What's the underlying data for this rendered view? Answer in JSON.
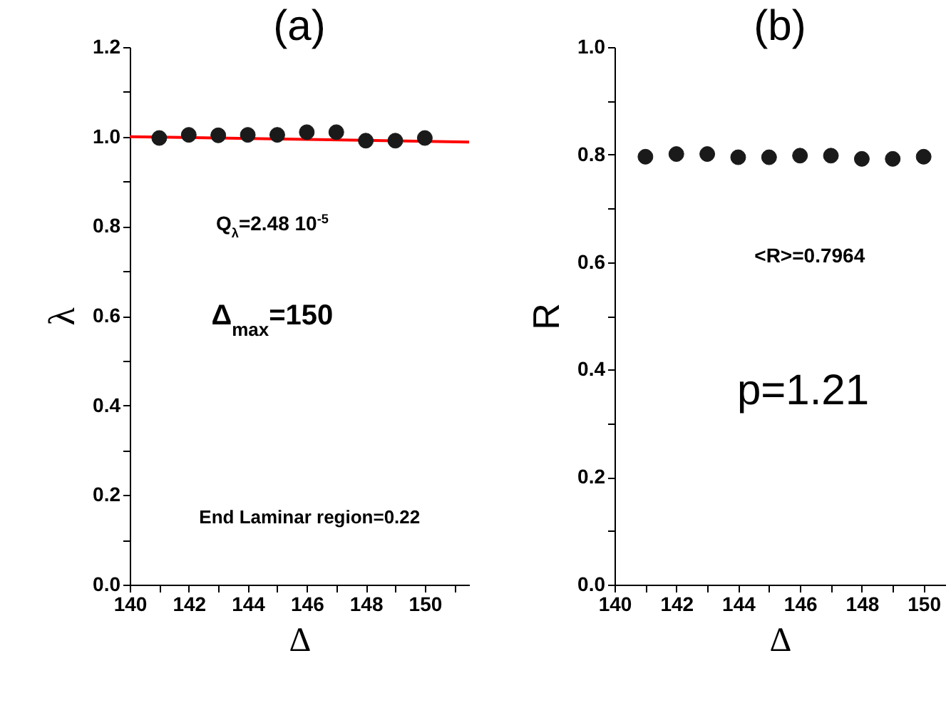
{
  "chart_data": [
    {
      "type": "scatter",
      "title": "(a)",
      "xlabel": "Δ",
      "ylabel": "λ",
      "grid": false,
      "x": [
        141,
        142,
        143,
        144,
        145,
        146,
        147,
        148,
        149,
        150
      ],
      "series": [
        {
          "color": "#1a1a1a",
          "marker": "circle",
          "values": [
            0.997,
            1.004,
            1.003,
            1.004,
            1.004,
            1.01,
            1.01,
            0.991,
            0.991,
            0.997
          ]
        },
        {
          "type": "line",
          "color": "#ff0000",
          "marker": "none",
          "x": [
            140,
            151.5
          ],
          "values": [
            1.0,
            0.988
          ]
        }
      ],
      "xlim": [
        140,
        151.5
      ],
      "xticks": [
        140,
        {
          "value": 141,
          "label": null
        },
        142,
        {
          "value": 143,
          "label": null
        },
        144,
        {
          "value": 145,
          "label": null
        },
        146,
        {
          "value": 147,
          "label": null
        },
        148,
        {
          "value": 149,
          "label": null
        },
        150,
        {
          "value": 151,
          "label": null
        }
      ],
      "ylim": [
        0,
        1.2
      ],
      "yticks": [
        {
          "value": 0,
          "label": "0.0"
        },
        {
          "value": 0.1,
          "label": null
        },
        {
          "value": 0.2,
          "label": "0.2"
        },
        {
          "value": 0.3,
          "label": null
        },
        {
          "value": 0.4,
          "label": "0.4"
        },
        {
          "value": 0.5,
          "label": null
        },
        {
          "value": 0.6,
          "label": "0.6"
        },
        {
          "value": 0.7,
          "label": null
        },
        {
          "value": 0.8,
          "label": "0.8"
        },
        {
          "value": 0.9,
          "label": null
        },
        {
          "value": 1,
          "label": "1.0"
        },
        {
          "value": 1.1,
          "label": null
        },
        {
          "value": 1.2,
          "label": "1.2"
        }
      ],
      "annotations": [
        "Q$_{λ}$=2.48 10$^{-5}$",
        "Δ$_{max}$=150",
        "End Laminar region=0.22"
      ]
    },
    {
      "type": "scatter",
      "title": "(b)",
      "xlabel": "Δ",
      "ylabel": "R",
      "marker": "circle",
      "grid": false,
      "x": [
        141,
        142,
        143,
        144,
        145,
        146,
        147,
        148,
        149,
        150
      ],
      "series": [
        {
          "color": "#1a1a1a",
          "values": [
            0.796,
            0.801,
            0.801,
            0.795,
            0.795,
            0.798,
            0.798,
            0.792,
            0.792,
            0.796
          ]
        }
      ],
      "xlim": [
        140,
        150.7
      ],
      "xticks": [
        140,
        {
          "value": 141,
          "label": null
        },
        142,
        {
          "value": 143,
          "label": null
        },
        144,
        {
          "value": 145,
          "label": null
        },
        146,
        {
          "value": 147,
          "label": null
        },
        148,
        {
          "value": 149,
          "label": null
        },
        150
      ],
      "ylim": [
        0,
        1
      ],
      "yticks": [
        {
          "value": 0,
          "label": "0.0"
        },
        {
          "value": 0.1,
          "label": null
        },
        {
          "value": 0.2,
          "label": "0.2"
        },
        {
          "value": 0.3,
          "label": null
        },
        {
          "value": 0.4,
          "label": "0.4"
        },
        {
          "value": 0.5,
          "label": null
        },
        {
          "value": 0.6,
          "label": "0.6"
        },
        {
          "value": 0.7,
          "label": null
        },
        {
          "value": 0.8,
          "label": "0.8"
        },
        {
          "value": 0.9,
          "label": null
        },
        {
          "value": 1,
          "label": "1.0"
        }
      ],
      "annotations": [
        "<R>=0.7964",
        "p=1.21"
      ]
    }
  ]
}
